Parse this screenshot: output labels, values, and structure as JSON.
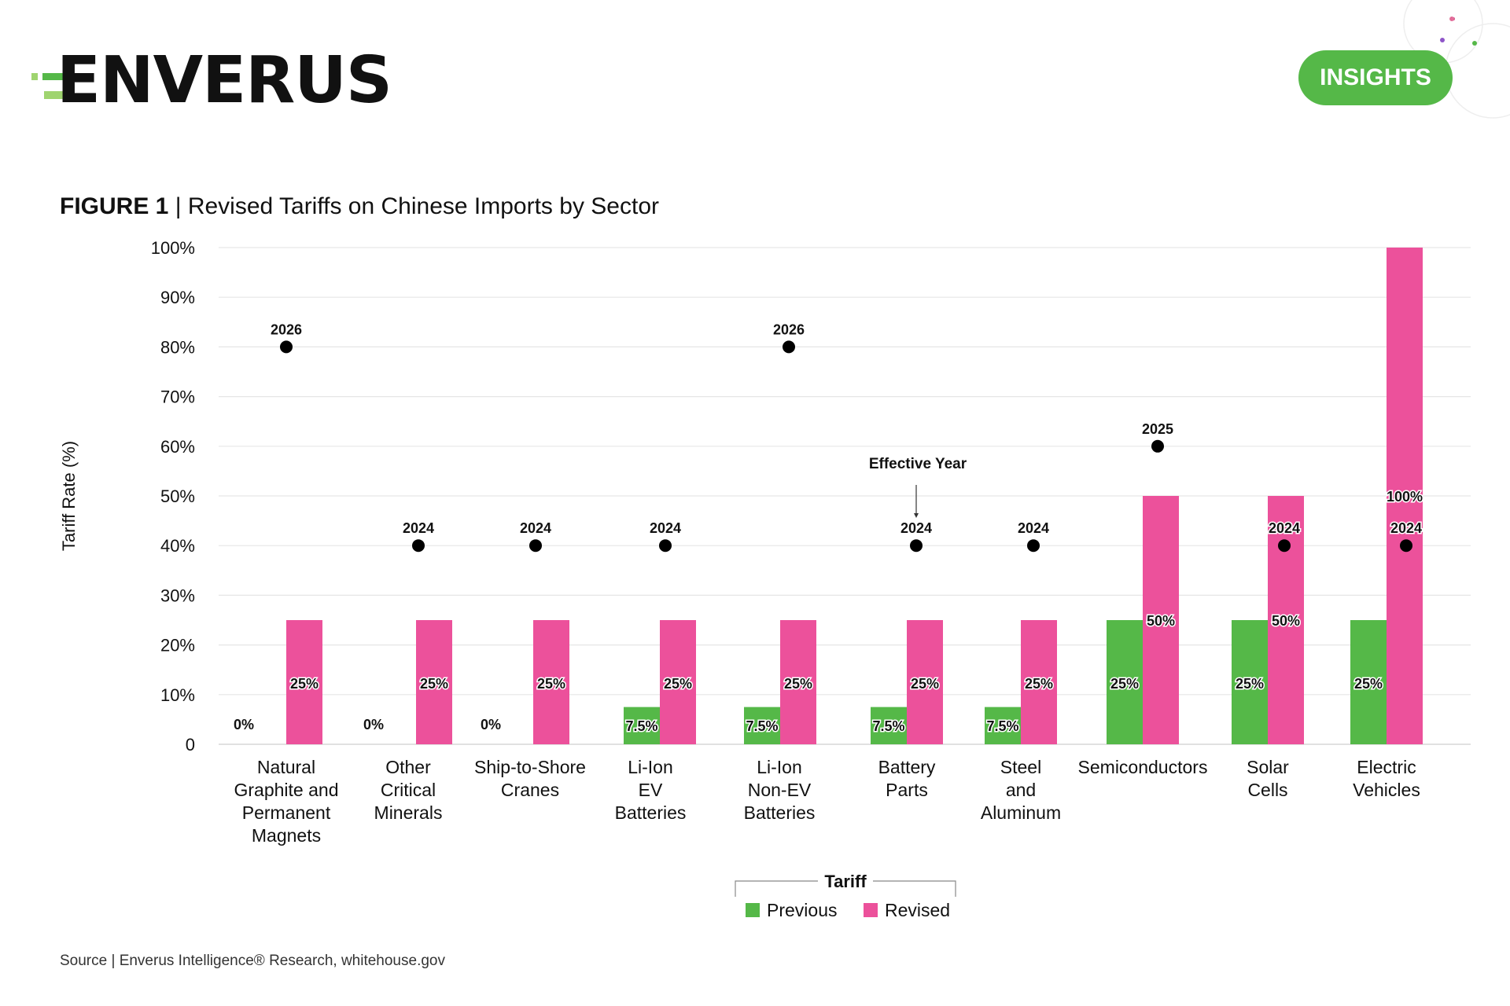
{
  "brand": {
    "logo_text": "ENVERUS",
    "insights_label": "INSIGHTS",
    "colors": {
      "green": "#55b848",
      "pink": "#ec519b",
      "light_green": "#9fd46f"
    }
  },
  "figure": {
    "label": "FIGURE 1",
    "separator": " | ",
    "title": "Revised Tariffs on Chinese Imports by Sector"
  },
  "source_text": "Source | Enverus Intelligence® Research, whitehouse.gov",
  "chart_data": {
    "type": "bar",
    "ylabel": "Tariff Rate (%)",
    "ylim": [
      0,
      100
    ],
    "y_ticks": [
      {
        "value": 0,
        "label": "0"
      },
      {
        "value": 10,
        "label": "10%"
      },
      {
        "value": 20,
        "label": "20%"
      },
      {
        "value": 30,
        "label": "30%"
      },
      {
        "value": 40,
        "label": "40%"
      },
      {
        "value": 50,
        "label": "50%"
      },
      {
        "value": 60,
        "label": "60%"
      },
      {
        "value": 70,
        "label": "70%"
      },
      {
        "value": 80,
        "label": "80%"
      },
      {
        "value": 90,
        "label": "90%"
      },
      {
        "value": 100,
        "label": "100%"
      }
    ],
    "grid": true,
    "categories": [
      [
        "Natural",
        "Graphite and",
        "Permanent",
        "Magnets"
      ],
      [
        "Other",
        "Critical",
        "Minerals"
      ],
      [
        "Ship-to-Shore",
        "Cranes"
      ],
      [
        "Li-Ion",
        "EV",
        "Batteries"
      ],
      [
        "Li-Ion",
        "Non-EV",
        "Batteries"
      ],
      [
        "Battery",
        "Parts"
      ],
      [
        "Steel",
        "and",
        "Aluminum"
      ],
      [
        "Semiconductors"
      ],
      [
        "Solar",
        "Cells"
      ],
      [
        "Electric",
        "Vehicles"
      ]
    ],
    "series": [
      {
        "name": "Previous",
        "color": "#55b848",
        "values": [
          0,
          0,
          0,
          7.5,
          7.5,
          7.5,
          7.5,
          25,
          25,
          25
        ],
        "labels": [
          "0%",
          "0%",
          "0%",
          "7.5%",
          "7.5%",
          "7.5%",
          "7.5%",
          "25%",
          "25%",
          "25%"
        ]
      },
      {
        "name": "Revised",
        "color": "#ec519b",
        "values": [
          25,
          25,
          25,
          25,
          25,
          25,
          25,
          50,
          50,
          100
        ],
        "labels": [
          "25%",
          "25%",
          "25%",
          "25%",
          "25%",
          "25%",
          "25%",
          "50%",
          "50%",
          "100%"
        ]
      }
    ],
    "effective_year": {
      "name": "Effective Year",
      "values": [
        80,
        40,
        40,
        40,
        80,
        40,
        40,
        60,
        40,
        40
      ],
      "labels": [
        "2026",
        "2024",
        "2024",
        "2024",
        "2026",
        "2024",
        "2024",
        "2025",
        "2024",
        "2024"
      ]
    },
    "annotation": {
      "text": "Effective Year",
      "target_category_index": 5
    },
    "legend": {
      "title": "Tariff",
      "placement": "bottom-center"
    }
  }
}
